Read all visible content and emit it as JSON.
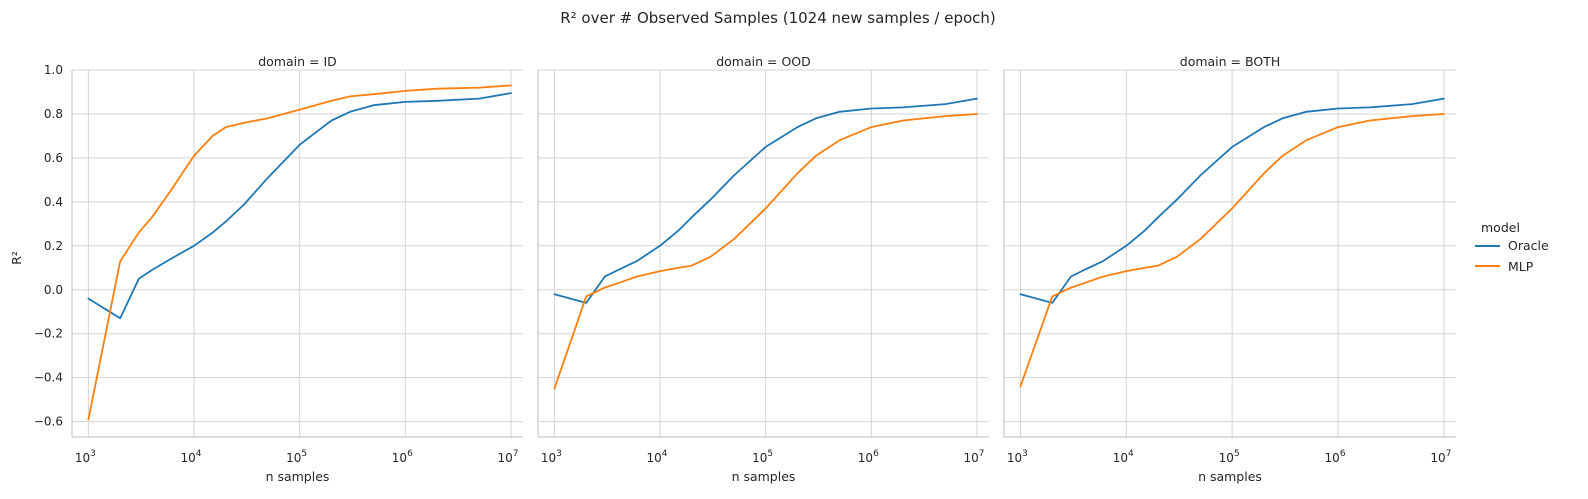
{
  "chart_data": {
    "type": "line",
    "title": "R² over # Observed Samples (1024 new samples / epoch)",
    "xlabel": "n samples",
    "ylabel": "R²",
    "xscale": "log",
    "xlim": [
      700,
      13000000
    ],
    "ylim": [
      -0.67,
      1.0
    ],
    "xticks": [
      1000,
      10000,
      100000,
      1000000,
      10000000
    ],
    "xtick_bases": [
      "10",
      "10",
      "10",
      "10",
      "10"
    ],
    "xtick_exponents": [
      "3",
      "4",
      "5",
      "6",
      "7"
    ],
    "yticks": [
      -0.6,
      -0.4,
      -0.2,
      0.0,
      0.2,
      0.4,
      0.6,
      0.8,
      1.0
    ],
    "ytick_labels": [
      "−0.6",
      "−0.4",
      "−0.2",
      "0.0",
      "0.2",
      "0.4",
      "0.6",
      "0.8",
      "1.0"
    ],
    "grid": true,
    "legend": {
      "title": "model",
      "placement": "right"
    },
    "panels": [
      {
        "title": "domain = ID",
        "series": [
          {
            "name": "Oracle",
            "color": "#1f77b4",
            "x": [
              1000,
              2000,
              3000,
              4000,
              6000,
              10000,
              15000,
              20000,
              30000,
              50000,
              100000,
              200000,
              300000,
              500000,
              1000000,
              2000000,
              5000000,
              10000000
            ],
            "y": [
              -0.04,
              -0.13,
              0.05,
              0.09,
              0.14,
              0.2,
              0.26,
              0.31,
              0.39,
              0.51,
              0.66,
              0.77,
              0.81,
              0.84,
              0.855,
              0.86,
              0.87,
              0.895
            ]
          },
          {
            "name": "MLP",
            "color": "#ff7f0e",
            "x": [
              1000,
              2000,
              3000,
              4000,
              6000,
              10000,
              15000,
              20000,
              30000,
              50000,
              100000,
              200000,
              300000,
              500000,
              1000000,
              2000000,
              5000000,
              10000000
            ],
            "y": [
              -0.59,
              0.13,
              0.26,
              0.33,
              0.45,
              0.61,
              0.7,
              0.74,
              0.76,
              0.78,
              0.82,
              0.86,
              0.88,
              0.89,
              0.905,
              0.915,
              0.92,
              0.93
            ]
          }
        ]
      },
      {
        "title": "domain = OOD",
        "series": [
          {
            "name": "Oracle",
            "color": "#1f77b4",
            "x": [
              1000,
              2000,
              3000,
              4000,
              6000,
              10000,
              15000,
              20000,
              30000,
              50000,
              100000,
              200000,
              300000,
              500000,
              1000000,
              2000000,
              5000000,
              10000000
            ],
            "y": [
              -0.02,
              -0.06,
              0.06,
              0.09,
              0.13,
              0.2,
              0.27,
              0.33,
              0.41,
              0.52,
              0.65,
              0.74,
              0.78,
              0.81,
              0.825,
              0.83,
              0.845,
              0.87
            ]
          },
          {
            "name": "MLP",
            "color": "#ff7f0e",
            "x": [
              1000,
              2000,
              3000,
              4000,
              6000,
              10000,
              15000,
              20000,
              30000,
              50000,
              100000,
              200000,
              300000,
              500000,
              1000000,
              2000000,
              5000000,
              10000000
            ],
            "y": [
              -0.45,
              -0.03,
              0.01,
              0.03,
              0.06,
              0.085,
              0.1,
              0.11,
              0.15,
              0.23,
              0.37,
              0.53,
              0.61,
              0.68,
              0.74,
              0.77,
              0.79,
              0.8
            ]
          }
        ]
      },
      {
        "title": "domain = BOTH",
        "series": [
          {
            "name": "Oracle",
            "color": "#1f77b4",
            "x": [
              1000,
              2000,
              3000,
              4000,
              6000,
              10000,
              15000,
              20000,
              30000,
              50000,
              100000,
              200000,
              300000,
              500000,
              1000000,
              2000000,
              5000000,
              10000000
            ],
            "y": [
              -0.02,
              -0.06,
              0.06,
              0.09,
              0.13,
              0.2,
              0.27,
              0.33,
              0.41,
              0.52,
              0.65,
              0.74,
              0.78,
              0.81,
              0.825,
              0.83,
              0.845,
              0.87
            ]
          },
          {
            "name": "MLP",
            "color": "#ff7f0e",
            "x": [
              1000,
              2000,
              3000,
              4000,
              6000,
              10000,
              15000,
              20000,
              30000,
              50000,
              100000,
              200000,
              300000,
              500000,
              1000000,
              2000000,
              5000000,
              10000000
            ],
            "y": [
              -0.44,
              -0.03,
              0.01,
              0.03,
              0.06,
              0.085,
              0.1,
              0.11,
              0.15,
              0.23,
              0.37,
              0.53,
              0.61,
              0.68,
              0.74,
              0.77,
              0.79,
              0.8
            ]
          }
        ]
      }
    ]
  }
}
